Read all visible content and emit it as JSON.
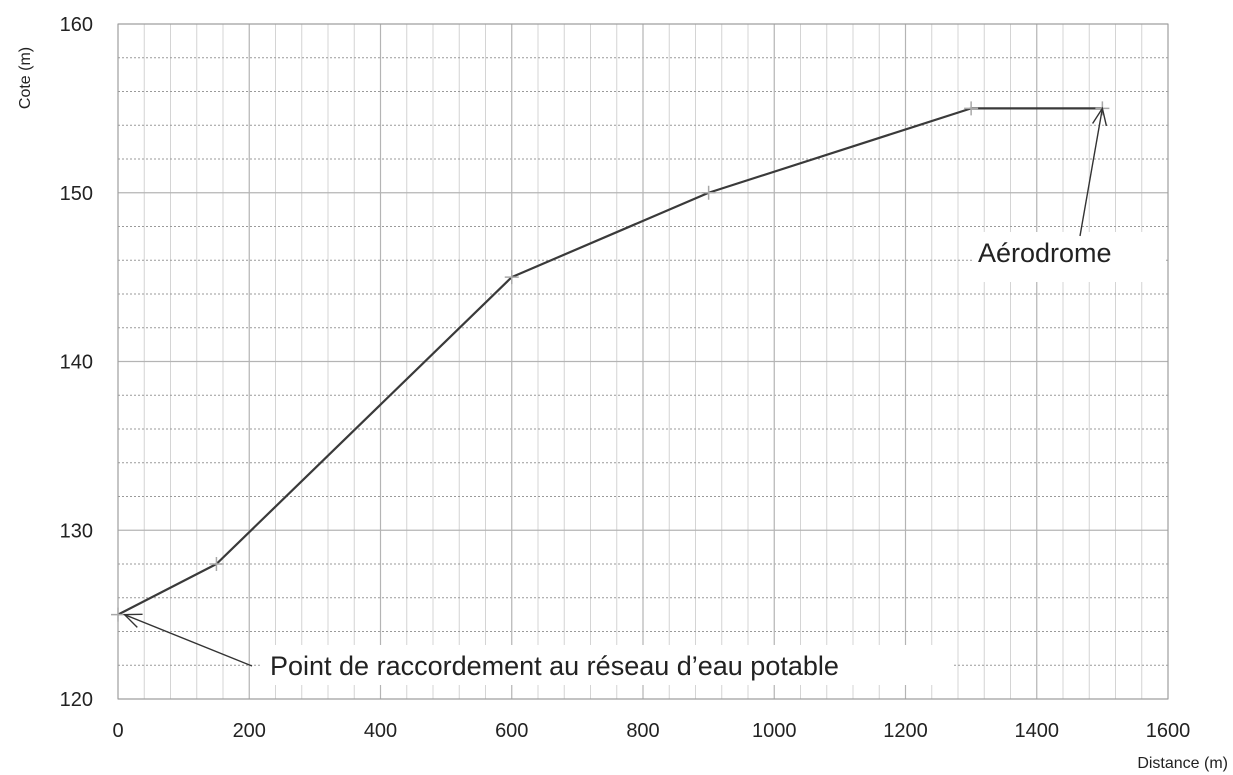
{
  "chart_data": {
    "type": "line",
    "title": "",
    "xlabel": "Distance (m)",
    "ylabel": "Cote (m)",
    "xlim": [
      0,
      1600
    ],
    "ylim": [
      120,
      160
    ],
    "x_ticks": [
      0,
      200,
      400,
      600,
      800,
      1000,
      1200,
      1400,
      1600
    ],
    "y_ticks": [
      120,
      130,
      140,
      150,
      160
    ],
    "x_minor_step": 40,
    "y_minor_step": 2,
    "grid": true,
    "legend": "none",
    "series": [
      {
        "x": [
          0,
          150,
          600,
          900,
          1300,
          1500
        ],
        "y": [
          125,
          128,
          145,
          150,
          155,
          155
        ],
        "color": "#3a3a3a"
      }
    ],
    "annotations": [
      {
        "text": "Point de raccordement au réseau d’eau potable",
        "target": [
          10,
          125
        ]
      },
      {
        "text": "Aérodrome",
        "target": [
          1500,
          155
        ]
      }
    ]
  }
}
